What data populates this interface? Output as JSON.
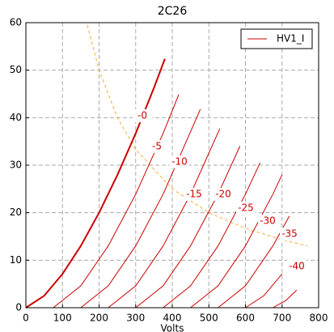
{
  "chart_data": {
    "type": "line",
    "title": "2C26",
    "xlabel": "Volts",
    "xlim": [
      0,
      800
    ],
    "xticks": [
      0,
      100,
      200,
      300,
      400,
      500,
      600,
      700,
      800
    ],
    "ylim": [
      0,
      60
    ],
    "yticks": [
      0,
      10,
      20,
      30,
      40,
      50,
      60
    ],
    "grid": true,
    "legend": "upper right",
    "series": [
      {
        "name": "HV1_I",
        "color": "#cc0000",
        "curves": [
          {
            "x": [
              0,
              50,
              100,
              150,
              200,
              250,
              300,
              350,
              380
            ],
            "values": [
              0,
              2.5,
              7.1,
              13.0,
              20.0,
              27.9,
              36.7,
              46.3,
              52.4
            ]
          },
          {
            "x": [
              75,
              150,
              225,
              300,
              375,
              418
            ],
            "values": [
              0,
              4.6,
              13.0,
              23.9,
              36.7,
              44.9
            ]
          },
          {
            "x": [
              150,
              225,
              300,
              375,
              477
            ],
            "values": [
              0,
              4.6,
              13.0,
              23.9,
              41.8
            ]
          },
          {
            "x": [
              225,
              300,
              375,
              450,
              530
            ],
            "values": [
              0,
              4.6,
              13.0,
              23.9,
              37.7
            ]
          },
          {
            "x": [
              300,
              375,
              450,
              525,
              585
            ],
            "values": [
              0,
              4.6,
              13.0,
              23.9,
              34.0
            ]
          },
          {
            "x": [
              375,
              450,
              525,
              600,
              640
            ],
            "values": [
              0,
              4.6,
              13.0,
              23.9,
              30.5
            ]
          },
          {
            "x": [
              450,
              525,
              600,
              675,
              700
            ],
            "values": [
              0,
              4.6,
              13.0,
              23.9,
              28.0
            ]
          },
          {
            "x": [
              525,
              600,
              675,
              720
            ],
            "values": [
              0,
              4.6,
              13.0,
              19.3
            ]
          },
          {
            "x": [
              600,
              650,
              700
            ],
            "values": [
              0,
              2.5,
              7.1
            ]
          },
          {
            "x": [
              675,
              710,
              740
            ],
            "values": [
              0,
              1.5,
              3.7
            ]
          }
        ]
      }
    ],
    "limit": {
      "color": "#f0b040",
      "dashed": true,
      "x": [
        168,
        200,
        250,
        300,
        400,
        500,
        600,
        700,
        769
      ],
      "values": [
        59.5,
        50,
        40,
        33.3,
        25,
        20,
        16.7,
        14.3,
        13.0
      ]
    },
    "annotations": [
      "-0",
      "-5",
      "-10",
      "-15",
      "-20",
      "-25",
      "-30",
      "-35",
      "-40"
    ]
  }
}
